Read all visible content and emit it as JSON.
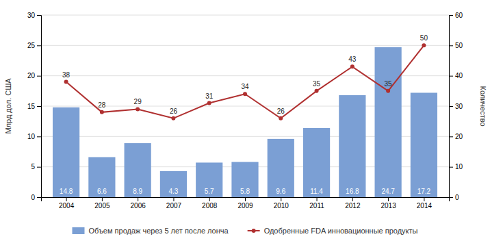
{
  "chart_data": {
    "type": "bar",
    "x": [
      2004,
      2005,
      2006,
      2007,
      2008,
      2009,
      2010,
      2011,
      2012,
      2013,
      2014
    ],
    "xlim": [
      2003.3,
      2014.7
    ],
    "xticks": [
      2004,
      2005,
      2006,
      2007,
      2008,
      2009,
      2010,
      2011,
      2012,
      2013,
      2014
    ],
    "ylabel": "Млрд дол. США",
    "y2label": "Количество",
    "ylim": [
      0,
      30
    ],
    "yticks": [
      0,
      5,
      10,
      15,
      20,
      25,
      30
    ],
    "y2lim": [
      0,
      60
    ],
    "y2ticks": [
      0,
      10,
      20,
      30,
      40,
      50,
      60
    ],
    "grid": true,
    "legend": "bottom",
    "series": [
      {
        "name": "Объем продаж через 5 лет после лонча",
        "type": "bar",
        "color": "#7b9fd4",
        "values": [
          14.8,
          6.6,
          8.9,
          4.3,
          5.7,
          5.8,
          9.6,
          11.4,
          16.8,
          24.7,
          17.2
        ],
        "data_labels": true
      },
      {
        "name": "Одобренные FDA инновационные продукты",
        "type": "line",
        "axis": "y2",
        "color": "#b03030",
        "marker": "circle",
        "values": [
          38,
          28,
          29,
          26,
          31,
          34,
          26,
          35,
          43,
          35,
          50
        ],
        "data_labels": true
      }
    ]
  }
}
